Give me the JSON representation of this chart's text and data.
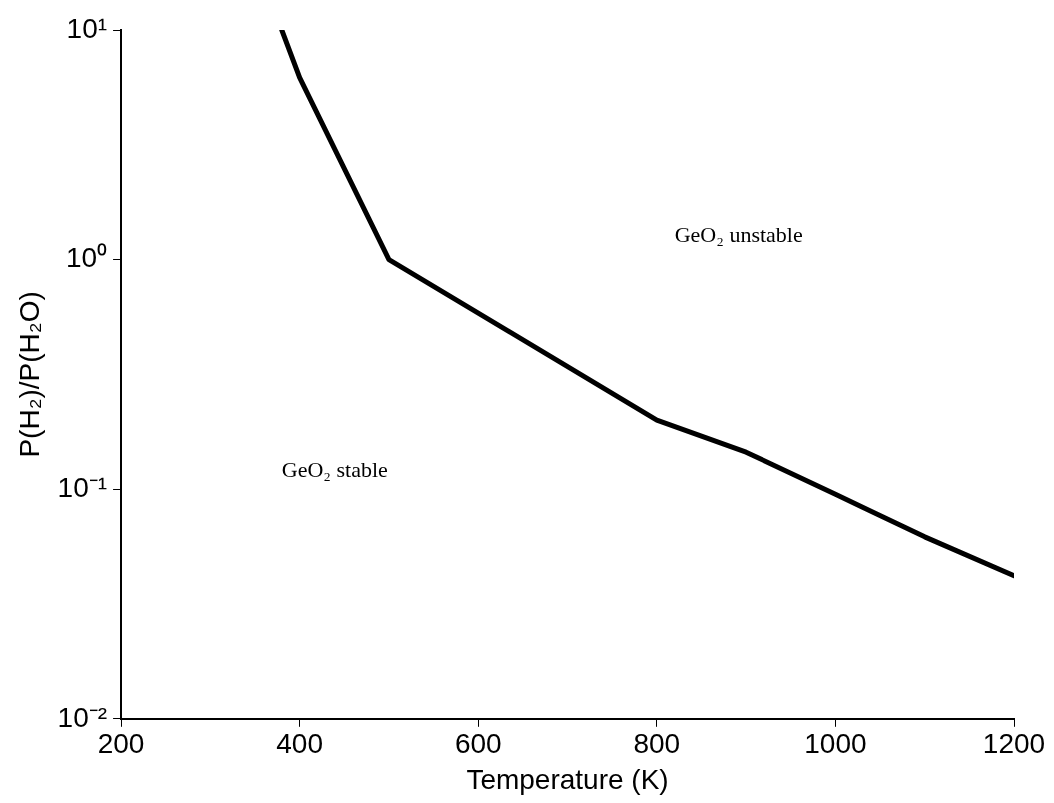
{
  "chart_data": {
    "type": "line",
    "xlabel": "Temperature (K)",
    "ylabel": "P(H₂)/P(H₂O)",
    "x": [
      380,
      400,
      500,
      800,
      900,
      1000,
      1100,
      1200
    ],
    "series": [
      {
        "color": "#000000",
        "values": [
          10,
          6.2,
          1,
          0.2,
          0.145,
          0.095,
          0.062,
          0.042
        ]
      }
    ],
    "xlim": [
      200,
      1200
    ],
    "xticks": [
      200,
      400,
      600,
      800,
      1000,
      1200
    ],
    "ylim": [
      0.01,
      10
    ],
    "yticks": [
      {
        "value": 0.01,
        "label": "10⁻²"
      },
      {
        "value": 0.1,
        "label": "10⁻¹"
      },
      {
        "value": 1,
        "label": "10⁰"
      },
      {
        "value": 10,
        "label": "10¹"
      }
    ],
    "log": "y",
    "grid": false,
    "legend": false,
    "marker": "none",
    "line_style": "solid",
    "annotations": [
      "GeO₂ unstable",
      "GeO₂ stable"
    ]
  }
}
